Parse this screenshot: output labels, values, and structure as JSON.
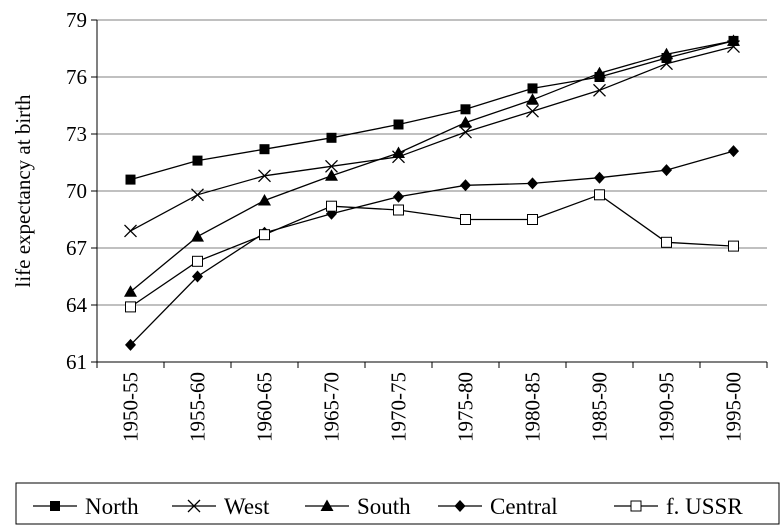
{
  "chart_data": {
    "type": "line",
    "title": "",
    "xlabel": "",
    "ylabel": "life expectancy at birth",
    "categories": [
      "1950-55",
      "1955-60",
      "1960-65",
      "1965-70",
      "1970-75",
      "1975-80",
      "1980-85",
      "1985-90",
      "1990-95",
      "1995-00"
    ],
    "ylim": [
      61,
      79
    ],
    "yticks": [
      61,
      64,
      67,
      70,
      73,
      76,
      79
    ],
    "grid": true,
    "legend_position": "bottom",
    "series": [
      {
        "name": "North",
        "marker": "square-filled",
        "values": [
          70.6,
          71.6,
          72.2,
          72.8,
          73.5,
          74.3,
          75.4,
          76.0,
          77.0,
          77.9
        ]
      },
      {
        "name": "West",
        "marker": "x",
        "values": [
          67.9,
          69.8,
          70.8,
          71.3,
          71.8,
          73.1,
          74.2,
          75.3,
          76.7,
          77.6
        ]
      },
      {
        "name": "South",
        "marker": "triangle-filled",
        "values": [
          64.7,
          67.6,
          69.5,
          70.8,
          72.0,
          73.6,
          74.8,
          76.2,
          77.2,
          77.9
        ]
      },
      {
        "name": "Central",
        "marker": "diamond-filled",
        "values": [
          61.9,
          65.5,
          67.8,
          68.8,
          69.7,
          70.3,
          70.4,
          70.7,
          71.1,
          72.1
        ]
      },
      {
        "name": "f. USSR",
        "marker": "square-open",
        "values": [
          63.9,
          66.3,
          67.7,
          69.2,
          69.0,
          68.5,
          68.5,
          69.8,
          67.3,
          67.1
        ]
      }
    ],
    "colors": {
      "line": "#000000",
      "grid": "#808080",
      "background": "#ffffff"
    }
  }
}
